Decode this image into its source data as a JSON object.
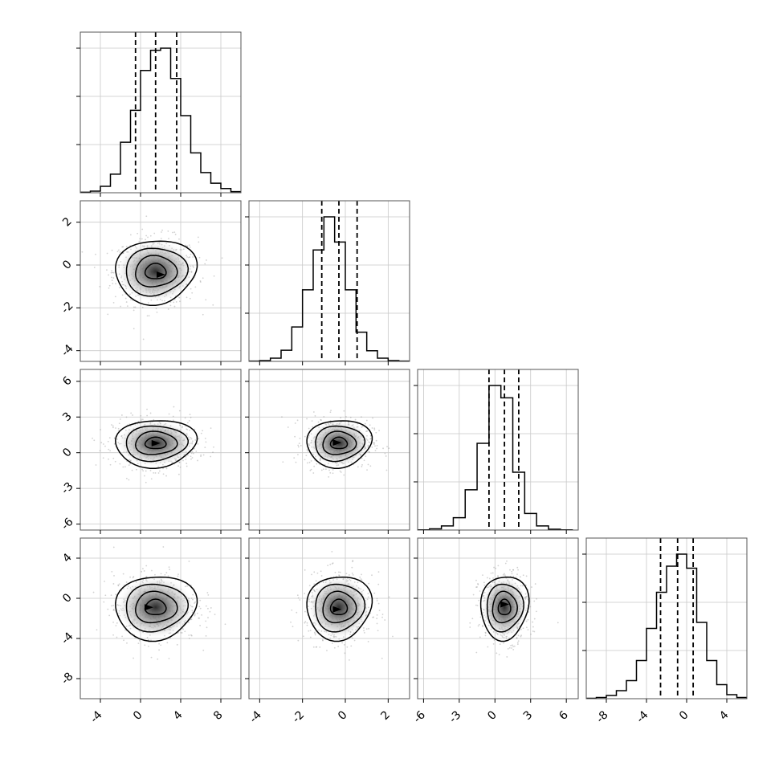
{
  "chart_data": {
    "type": "corner",
    "parameters": [
      "",
      "",
      "",
      ""
    ],
    "colors": {
      "hist": "#000000",
      "scatter": "#7f7f7f",
      "contour": "#000000",
      "grid": "#c8c8c8",
      "quantile": "#000000"
    },
    "grid": true,
    "ranges": [
      [
        -6,
        10
      ],
      [
        -4.5,
        3
      ],
      [
        -6.5,
        7
      ],
      [
        -10,
        6
      ]
    ],
    "x_ticks": [
      [
        -4,
        0,
        4,
        8
      ],
      [
        -4,
        -2,
        0,
        2
      ],
      [
        -6,
        -3,
        0,
        3,
        6
      ],
      [
        -8,
        -4,
        0,
        4
      ]
    ],
    "y_ticks": [
      null,
      [
        -4,
        -2,
        0,
        2
      ],
      [
        -6,
        -3,
        0,
        3,
        6
      ],
      [
        -8,
        -4,
        0,
        4
      ]
    ],
    "marginals": [
      {
        "parameter": 0,
        "bin_edges": [
          -6,
          -5,
          -4,
          -3,
          -2,
          -1,
          0,
          1,
          2,
          3,
          4,
          5,
          6,
          7,
          8,
          9,
          10
        ],
        "counts": [
          1,
          3,
          12,
          35,
          95,
          155,
          230,
          268,
          272,
          215,
          145,
          75,
          38,
          18,
          8,
          2
        ],
        "quantiles": [
          -0.5,
          1.5,
          3.6
        ]
      },
      {
        "parameter": 1,
        "bin_edges": [
          -4.5,
          -4.0,
          -3.5,
          -3.0,
          -2.5,
          -2.0,
          -1.5,
          -1.0,
          -0.5,
          0.0,
          0.5,
          1.0,
          1.5,
          2.0,
          2.5,
          3.0
        ],
        "counts": [
          1,
          3,
          12,
          42,
          130,
          270,
          420,
          545,
          450,
          270,
          110,
          40,
          12,
          3,
          1
        ],
        "quantiles": [
          -1.1,
          -0.3,
          0.55
        ]
      },
      {
        "parameter": 2,
        "bin_edges": [
          -6.5,
          -5.5,
          -4.5,
          -3.5,
          -2.5,
          -1.5,
          -0.5,
          0.5,
          1.5,
          2.5,
          3.5,
          4.5,
          5.5,
          6.5
        ],
        "counts": [
          1,
          6,
          20,
          60,
          195,
          420,
          700,
          640,
          280,
          80,
          20,
          4,
          1
        ],
        "quantiles": [
          -0.5,
          0.8,
          2.0
        ]
      },
      {
        "parameter": 3,
        "bin_edges": [
          -10,
          -9,
          -8,
          -7,
          -6,
          -5,
          -4,
          -3,
          -2,
          -1,
          0,
          1,
          2,
          3,
          4,
          5,
          6
        ],
        "counts": [
          1,
          3,
          8,
          20,
          45,
          95,
          175,
          265,
          330,
          360,
          325,
          190,
          95,
          35,
          10,
          3
        ],
        "quantiles": [
          -2.6,
          -0.9,
          0.65
        ]
      }
    ],
    "joint": [
      {
        "x": 0,
        "y": 1,
        "center": [
          1.5,
          -0.3
        ],
        "sd": [
          2.0,
          0.75
        ],
        "peak": [
          2.0,
          -0.45
        ]
      },
      {
        "x": 0,
        "y": 2,
        "center": [
          1.5,
          0.8
        ],
        "sd": [
          2.0,
          1.0
        ],
        "peak": [
          1.5,
          0.8
        ]
      },
      {
        "x": 1,
        "y": 2,
        "center": [
          -0.3,
          0.8
        ],
        "sd": [
          0.75,
          1.0
        ],
        "peak": [
          -0.4,
          0.85
        ]
      },
      {
        "x": 0,
        "y": 3,
        "center": [
          1.5,
          -0.9
        ],
        "sd": [
          2.0,
          1.6
        ],
        "peak": [
          0.8,
          -0.9
        ]
      },
      {
        "x": 1,
        "y": 3,
        "center": [
          -0.3,
          -0.9
        ],
        "sd": [
          0.75,
          1.6
        ],
        "peak": [
          -0.4,
          -1.1
        ]
      },
      {
        "x": 2,
        "y": 3,
        "center": [
          0.8,
          -0.9
        ],
        "sd": [
          1.0,
          1.6
        ],
        "peak": [
          0.8,
          -0.6
        ]
      }
    ],
    "contour_levels_sigma": [
      0.5,
      1.0,
      1.5,
      2.0
    ]
  }
}
